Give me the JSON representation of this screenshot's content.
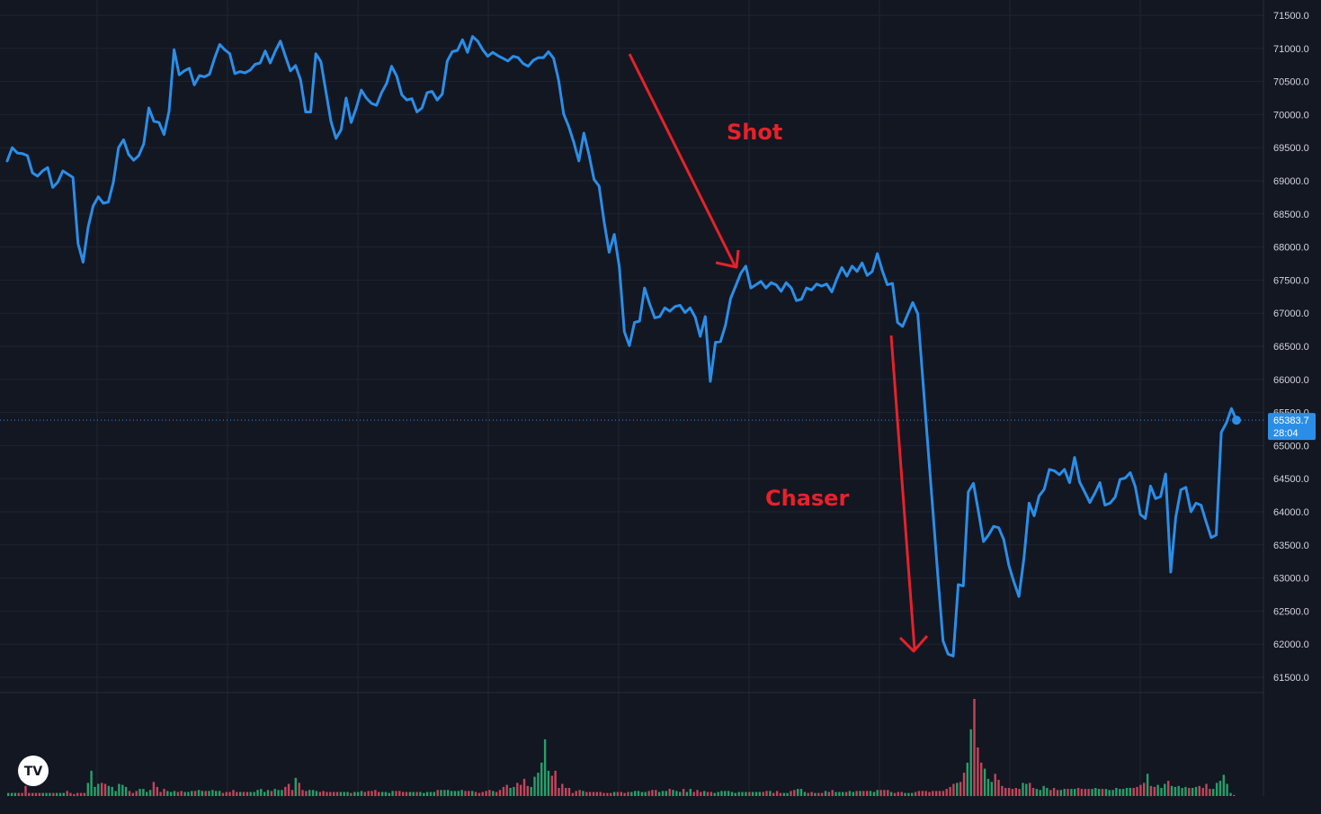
{
  "chart_data": {
    "type": "line",
    "title": "",
    "xlabel": "",
    "ylabel": "",
    "ylim": [
      61350,
      71600
    ],
    "y_ticks": [
      "71500.0",
      "71000.0",
      "70500.0",
      "70000.0",
      "69500.0",
      "69000.0",
      "68500.0",
      "68000.0",
      "67500.0",
      "67000.0",
      "66500.0",
      "66000.0",
      "65500.0",
      "65000.0",
      "64500.0",
      "64000.0",
      "63500.0",
      "63000.0",
      "62500.0",
      "62000.0",
      "61500.0"
    ],
    "grid": true,
    "line_color": "#2a8ee8",
    "series": [
      {
        "values": [
          69300,
          69500,
          69420,
          69410,
          69380,
          69120,
          69070,
          69150,
          69200,
          68900,
          68980,
          69150,
          69100,
          69050,
          68050,
          67770,
          68300,
          68620,
          68760,
          68660,
          68680,
          68980,
          69500,
          69620,
          69400,
          69310,
          69380,
          69560,
          70100,
          69900,
          69880,
          69700,
          70050,
          70980,
          70600,
          70660,
          70700,
          70450,
          70590,
          70570,
          70610,
          70850,
          71060,
          70980,
          70920,
          70620,
          70650,
          70630,
          70670,
          70760,
          70780,
          70960,
          70780,
          70960,
          71110,
          70880,
          70660,
          70740,
          70520,
          70040,
          70040,
          70920,
          70800,
          70350,
          69900,
          69640,
          69770,
          70250,
          69880,
          70100,
          70370,
          70250,
          70170,
          70140,
          70330,
          70470,
          70730,
          70580,
          70300,
          70220,
          70240,
          70040,
          70100,
          70330,
          70350,
          70220,
          70310,
          70810,
          70950,
          70970,
          71130,
          70940,
          71180,
          71110,
          70980,
          70880,
          70940,
          70890,
          70850,
          70810,
          70880,
          70860,
          70770,
          70730,
          70820,
          70860,
          70860,
          70950,
          70850,
          70520,
          70010,
          69820,
          69580,
          69300,
          69720,
          69400,
          69020,
          68920,
          68380,
          67920,
          68190,
          67700,
          66720,
          66510,
          66860,
          66880,
          67380,
          67140,
          66930,
          66950,
          67080,
          67030,
          67100,
          67120,
          67010,
          67080,
          66940,
          66650,
          66950,
          65970,
          66560,
          66570,
          66820,
          67220,
          67410,
          67600,
          67710,
          67380,
          67430,
          67480,
          67380,
          67460,
          67430,
          67330,
          67460,
          67380,
          67190,
          67210,
          67380,
          67350,
          67440,
          67410,
          67440,
          67320,
          67520,
          67690,
          67560,
          67710,
          67630,
          67760,
          67570,
          67630,
          67900,
          67640,
          67430,
          67450,
          66860,
          66800,
          66980,
          67160,
          66990,
          66000,
          65000,
          64000,
          63000,
          62050,
          61850,
          61820,
          62900,
          62880,
          64300,
          64430,
          64000,
          63550,
          63650,
          63780,
          63760,
          63580,
          63190,
          62940,
          62720,
          63300,
          64130,
          63940,
          64240,
          64340,
          64640,
          64620,
          64560,
          64640,
          64440,
          64820,
          64450,
          64300,
          64140,
          64280,
          64440,
          64100,
          64130,
          64220,
          64490,
          64510,
          64590,
          64380,
          63960,
          63900,
          64390,
          64200,
          64230,
          64570,
          63090,
          63920,
          64330,
          64370,
          64000,
          64130,
          64100,
          63850,
          63610,
          63650,
          65200,
          65340,
          65560,
          65383.7
        ]
      }
    ],
    "volume": [
      3,
      3,
      3,
      3,
      3,
      10,
      3,
      3,
      3,
      3,
      3,
      3,
      3,
      3,
      3,
      3,
      3,
      5,
      3,
      2,
      3,
      3,
      3,
      13,
      25,
      9,
      12,
      13,
      12,
      10,
      9,
      5,
      12,
      11,
      9,
      5,
      3,
      5,
      7,
      7,
      4,
      6,
      14,
      9,
      4,
      7,
      5,
      4,
      5,
      4,
      5,
      4,
      4,
      5,
      5,
      6,
      5,
      5,
      5,
      6,
      5,
      5,
      3,
      4,
      4,
      6,
      4,
      4,
      4,
      4,
      4,
      4,
      6,
      7,
      4,
      6,
      5,
      7,
      6,
      6,
      9,
      12,
      6,
      18,
      13,
      6,
      5,
      6,
      6,
      5,
      4,
      5,
      4,
      4,
      4,
      4,
      4,
      4,
      4,
      3,
      4,
      4,
      5,
      4,
      5,
      5,
      6,
      4,
      4,
      4,
      3,
      5,
      5,
      5,
      4,
      4,
      4,
      4,
      4,
      4,
      3,
      4,
      4,
      4,
      6,
      6,
      6,
      6,
      5,
      5,
      5,
      6,
      5,
      5,
      5,
      4,
      3,
      4,
      5,
      6,
      5,
      4,
      6,
      9,
      11,
      8,
      9,
      13,
      11,
      17,
      10,
      9,
      19,
      23,
      33,
      56,
      25,
      20,
      25,
      8,
      12,
      8,
      8,
      3,
      5,
      6,
      5,
      4,
      4,
      4,
      4,
      4,
      3,
      3,
      3,
      4,
      4,
      4,
      3,
      4,
      4,
      5,
      5,
      4,
      4,
      5,
      6,
      6,
      4,
      5,
      5,
      7,
      6,
      5,
      4,
      7,
      4,
      7,
      4,
      6,
      4,
      5,
      4,
      4,
      3,
      4,
      5,
      5,
      5,
      4,
      3,
      4,
      4,
      4,
      4,
      4,
      4,
      4,
      4,
      5,
      5,
      3,
      5,
      3,
      3,
      3,
      5,
      6,
      7,
      7,
      4,
      3,
      4,
      3,
      3,
      3,
      5,
      4,
      6,
      4,
      4,
      4,
      4,
      5,
      4,
      5,
      5,
      5,
      5,
      5,
      4,
      6,
      6,
      6,
      6,
      4,
      3,
      4,
      4,
      3,
      3,
      3,
      4,
      5,
      5,
      5,
      4,
      5,
      5,
      5,
      5,
      7,
      9,
      12,
      13,
      14,
      23,
      33,
      66,
      96,
      48,
      33,
      27,
      17,
      14,
      22,
      16,
      10,
      8,
      8,
      7,
      8,
      7,
      13,
      12,
      13,
      8,
      7,
      6,
      10,
      8,
      6,
      8,
      6,
      6,
      7,
      7,
      7,
      7,
      8,
      7,
      7,
      7,
      7,
      8,
      7,
      7,
      7,
      6,
      6,
      8,
      7,
      7,
      8,
      8,
      8,
      9,
      11,
      13,
      22,
      10,
      9,
      11,
      8,
      12,
      15,
      10,
      9,
      10,
      8,
      9,
      8,
      8,
      9,
      10,
      8,
      12,
      7,
      7,
      13,
      15,
      21,
      12,
      3,
      1
    ],
    "current_price_label": "65383.7",
    "countdown_label": "28:04",
    "annotations": [
      {
        "text": "Shot",
        "color": "#e8212a"
      },
      {
        "text": "Chaser",
        "color": "#e8212a"
      }
    ],
    "watermark": "TradingView"
  },
  "colors": {
    "background": "#131722",
    "grid": "#1f2433",
    "line": "#2a8ee8",
    "price_tag_bg": "#2a8ee8",
    "vol_up": "#26a069",
    "vol_down": "#c4455a",
    "arrow": "#e8212a"
  }
}
